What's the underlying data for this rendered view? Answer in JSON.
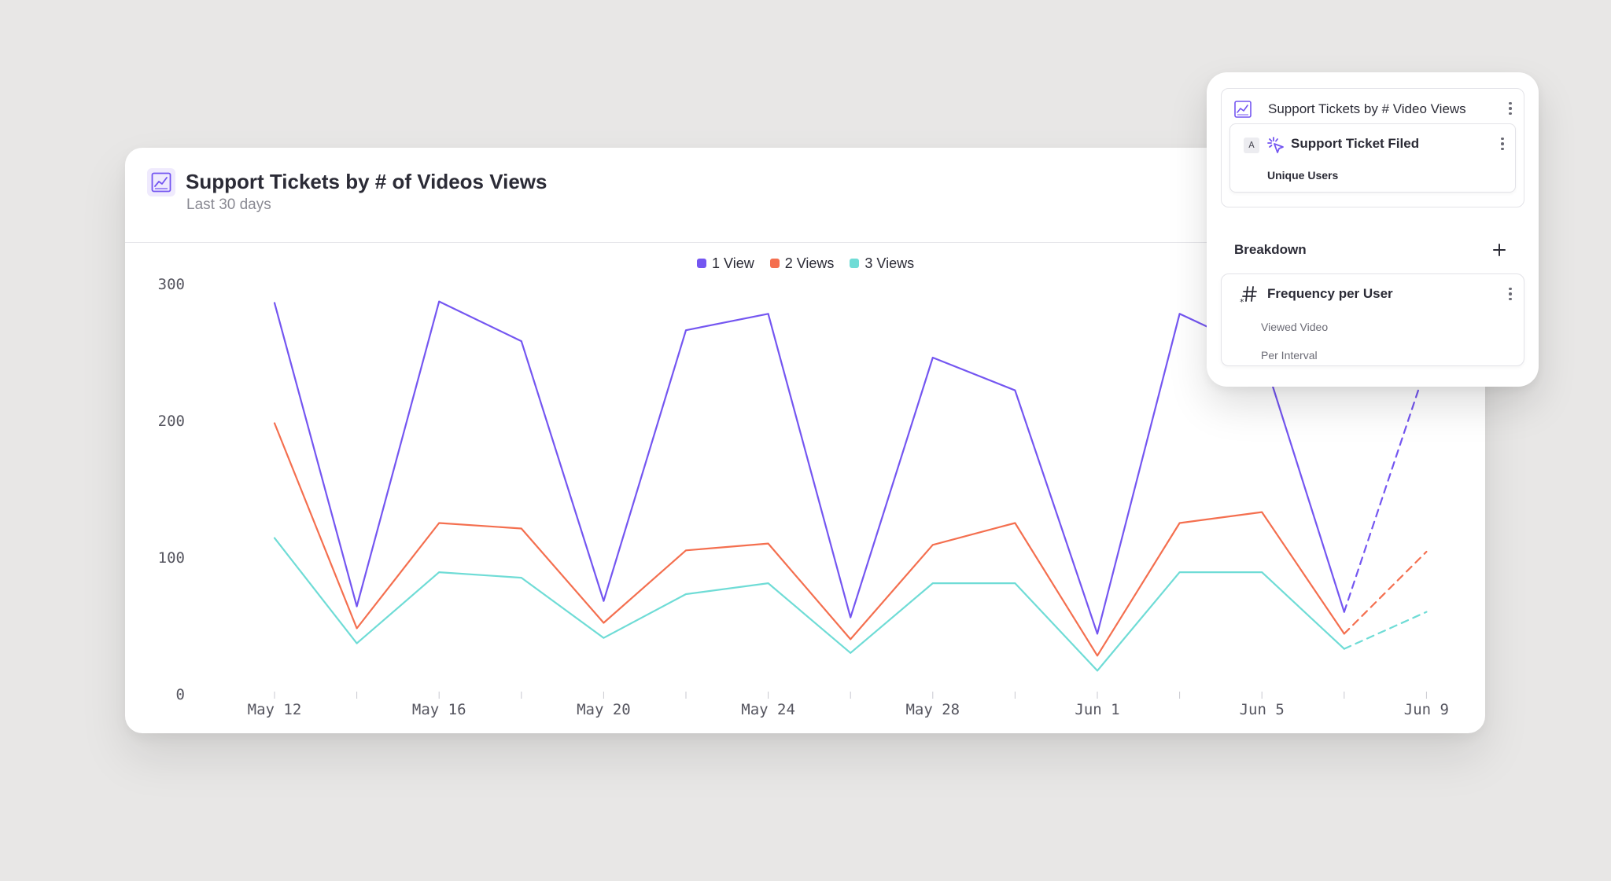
{
  "report": {
    "title": "Support Tickets by # of Videos Views",
    "subtitle": "Last 30 days",
    "icon": "line-chart-icon"
  },
  "legend": [
    {
      "label": "1 View",
      "color": "#7456f1"
    },
    {
      "label": "2 Views",
      "color": "#f46f4f"
    },
    {
      "label": "3 Views",
      "color": "#6fdcd6"
    }
  ],
  "chart_data": {
    "type": "line",
    "title": "Support Tickets by # of Videos Views",
    "xlabel": "",
    "ylabel": "",
    "ylim": [
      0,
      300
    ],
    "yticks": [
      "0",
      "100",
      "200",
      "300"
    ],
    "x": [
      "May 12",
      "May 14",
      "May 16",
      "May 18",
      "May 20",
      "May 22",
      "May 24",
      "May 26",
      "May 28",
      "May 30",
      "Jun 1",
      "Jun 3",
      "Jun 5",
      "Jun 7",
      "Jun 9"
    ],
    "xtick_labels": [
      "May 12",
      "",
      "May 16",
      "",
      "May 20",
      "",
      "May 24",
      "",
      "May 28",
      "",
      "Jun 1",
      "",
      "Jun 5",
      "",
      "Jun 9"
    ],
    "partial_from_index": 13,
    "grid": false,
    "legend_position": "top-center",
    "series": [
      {
        "name": "1 View",
        "color": "#7456f1",
        "values": [
          286,
          64,
          287,
          258,
          68,
          266,
          278,
          56,
          246,
          222,
          44,
          278,
          250,
          60,
          240
        ]
      },
      {
        "name": "2 Views",
        "color": "#f46f4f",
        "values": [
          198,
          48,
          125,
          121,
          52,
          105,
          110,
          40,
          109,
          125,
          28,
          125,
          133,
          44,
          104
        ]
      },
      {
        "name": "3 Views",
        "color": "#6fdcd6",
        "values": [
          114,
          37,
          89,
          85,
          41,
          73,
          81,
          30,
          81,
          81,
          17,
          89,
          89,
          33,
          60
        ]
      }
    ]
  },
  "panel": {
    "metric": {
      "title": "Support Tickets by # Video Views",
      "icon": "line-chart-icon"
    },
    "event": {
      "letter": "A",
      "name": "Support Ticket Filed",
      "measure": "Unique Users",
      "icon": "cursor-click-icon"
    },
    "breakdown": {
      "label": "Breakdown",
      "add_icon": "plus-icon",
      "item": {
        "name": "Frequency per User",
        "event": "Viewed Video",
        "interval": "Per Interval",
        "icon": "hash-icon"
      }
    }
  }
}
